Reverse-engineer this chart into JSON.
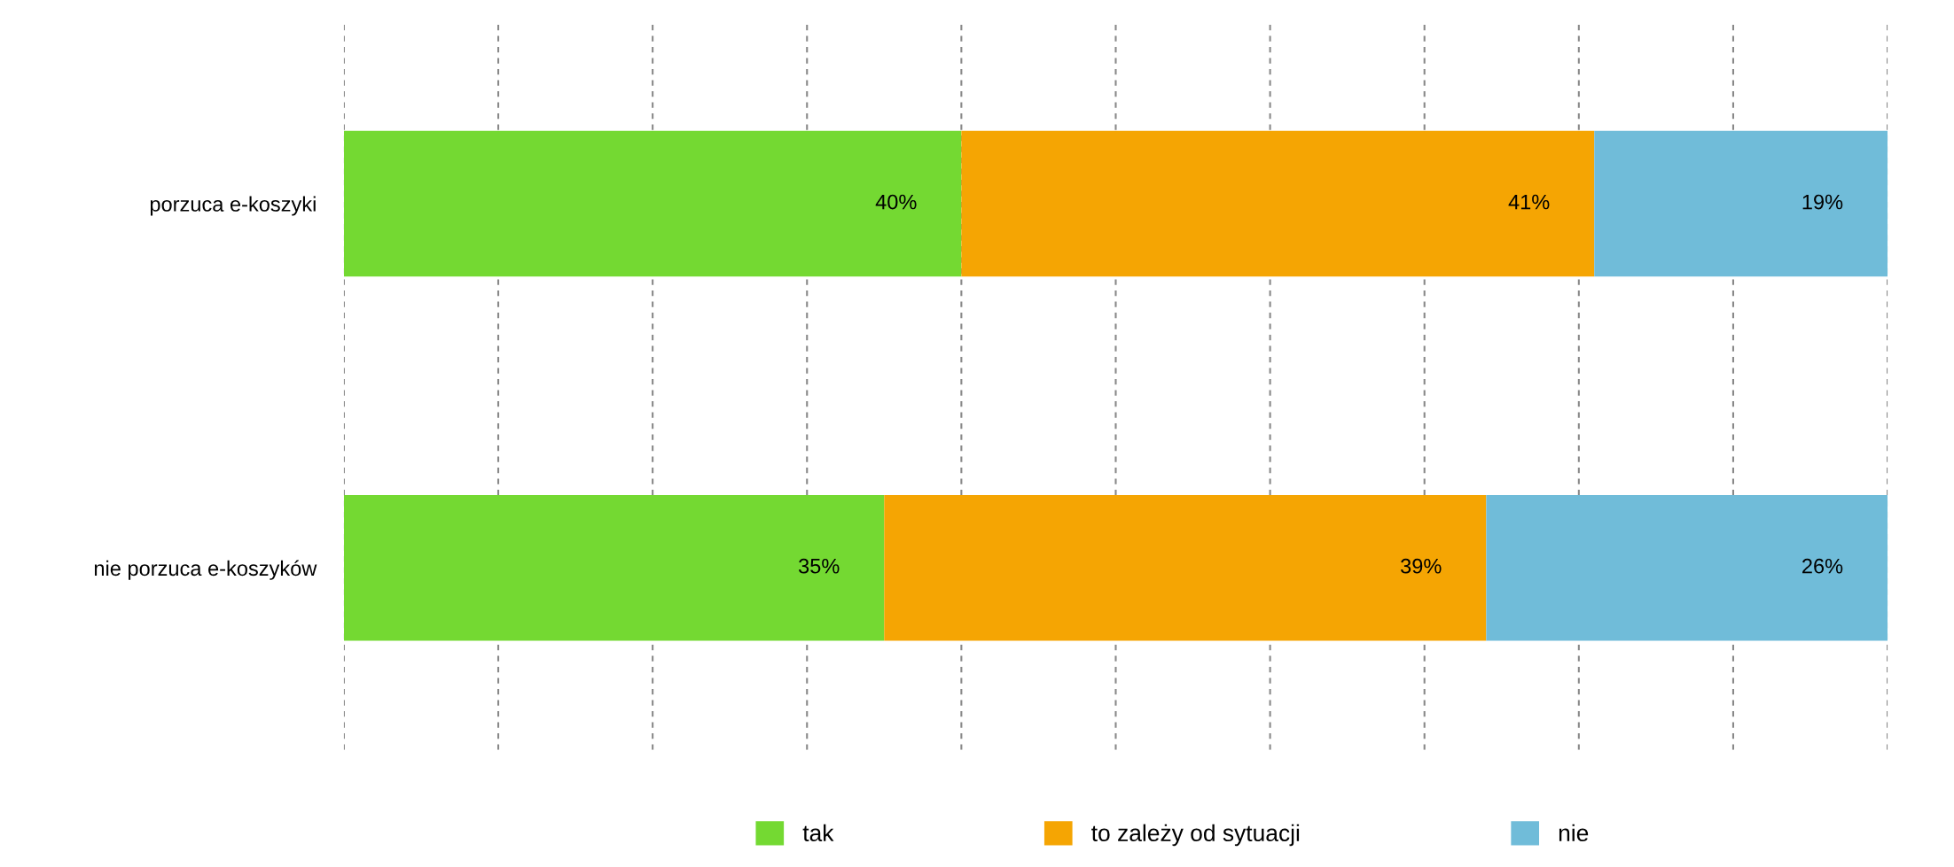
{
  "chart_data": {
    "type": "bar",
    "orientation": "horizontal",
    "stacked": true,
    "categories": [
      "porzuca e-koszyki",
      "nie porzuca e-koszyków"
    ],
    "series": [
      {
        "name": "tak",
        "color": "#74d932",
        "values": [
          40,
          35
        ],
        "value_labels": [
          "40%",
          "35%"
        ]
      },
      {
        "name": "to zależy od sytuacji",
        "color": "#f5a503",
        "values": [
          41,
          39
        ],
        "value_labels": [
          "41%",
          "39%"
        ]
      },
      {
        "name": "nie",
        "color": "#70bcd9",
        "values": [
          19,
          26
        ],
        "value_labels": [
          "19%",
          "26%"
        ]
      }
    ],
    "xlim": [
      0,
      100
    ],
    "xticks": [
      {
        "value": 0,
        "label": null
      },
      {
        "value": 10,
        "label": null
      },
      {
        "value": 20,
        "label": null
      },
      {
        "value": 30,
        "label": null
      },
      {
        "value": 40,
        "label": null
      },
      {
        "value": 50,
        "label": null
      },
      {
        "value": 60,
        "label": null
      },
      {
        "value": 70,
        "label": null
      },
      {
        "value": 80,
        "label": null
      },
      {
        "value": 90,
        "label": null
      },
      {
        "value": 100,
        "label": null
      }
    ],
    "tick_labels": "y",
    "grid": "x",
    "legend": "bottom"
  }
}
